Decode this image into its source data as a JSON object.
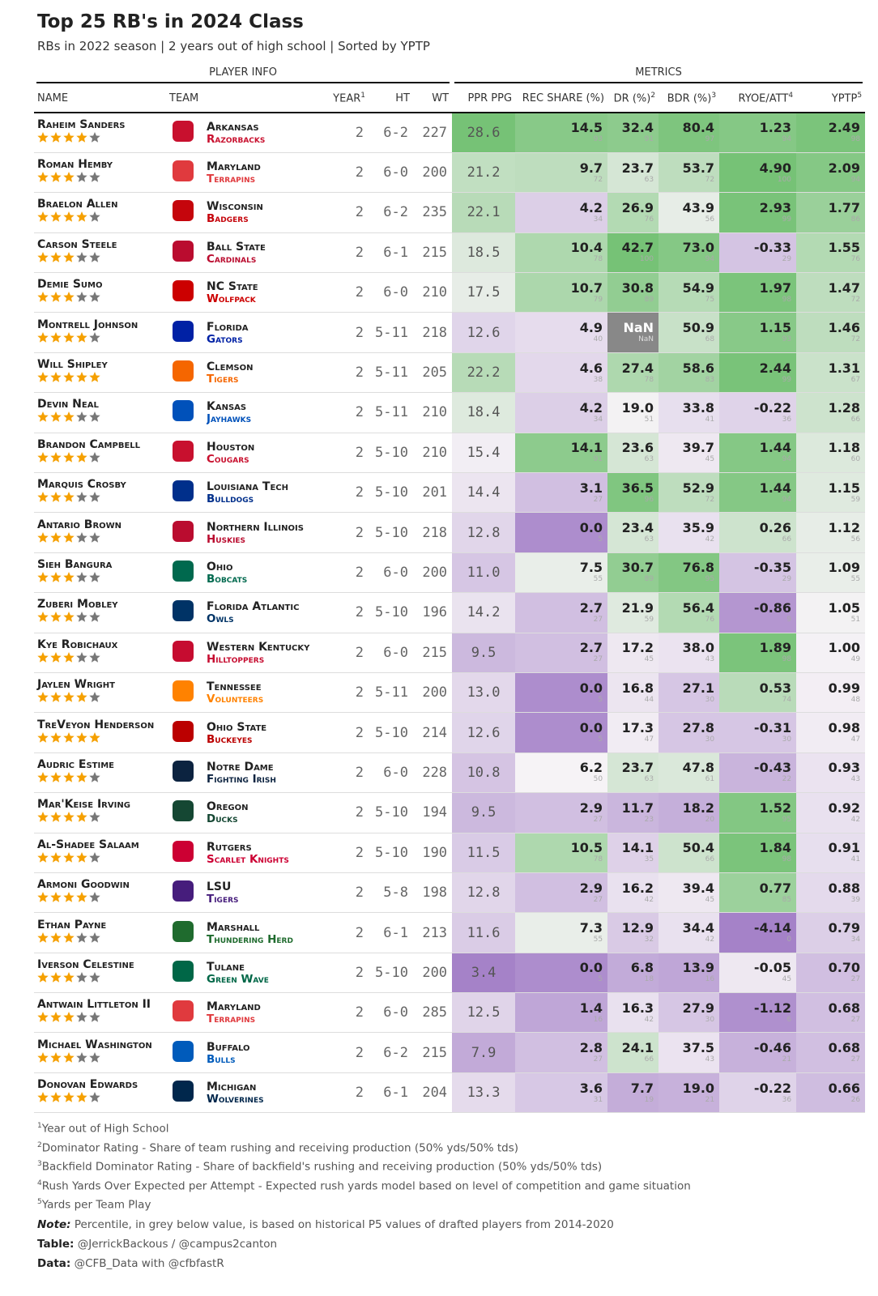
{
  "header": {
    "title": "Top 25 RB's in 2024 Class",
    "subtitle": "RBs in 2022 season | 2 years out of high school | Sorted by YPTP"
  },
  "spanners": [
    "PLAYER INFO",
    "METRICS"
  ],
  "columns": [
    {
      "label": "NAME"
    },
    {
      "label": "TEAM"
    },
    {
      "label": "YEAR",
      "note": "1"
    },
    {
      "label": "HT"
    },
    {
      "label": "WT"
    },
    {
      "label": "PPR PPG"
    },
    {
      "label": "REC SHARE (%)"
    },
    {
      "label": "DR (%)",
      "note": "2"
    },
    {
      "label": "BDR (%)",
      "note": "3"
    },
    {
      "label": "RYOE/ATT",
      "note": "4"
    },
    {
      "label": "YPTP",
      "note": "5"
    }
  ],
  "rows": [
    {
      "name": "Raheim Sanders",
      "stars": 4,
      "team": "Arkansas",
      "nickname": "Razorbacks",
      "color": "#c8102e",
      "year": 2,
      "ht": "6-2",
      "wt": 227,
      "ppr": "28.6",
      "rec": [
        "14.5",
        93
      ],
      "dr": [
        "32.4",
        91
      ],
      "bdr": [
        "80.4",
        97
      ],
      "ryoe": [
        "1.23",
        94
      ],
      "yptp": [
        "2.49",
        98
      ]
    },
    {
      "name": "Roman Hemby",
      "stars": 3,
      "team": "Maryland",
      "nickname": "Terrapins",
      "color": "#e03a3e",
      "year": 2,
      "ht": "6-0",
      "wt": 200,
      "ppr": "21.2",
      "rec": [
        "9.7",
        72
      ],
      "dr": [
        "23.7",
        63
      ],
      "bdr": [
        "53.7",
        72
      ],
      "ryoe": [
        "4.90",
        100
      ],
      "yptp": [
        "2.09",
        94
      ]
    },
    {
      "name": "Braelon Allen",
      "stars": 4,
      "team": "Wisconsin",
      "nickname": "Badgers",
      "color": "#c5050c",
      "year": 2,
      "ht": "6-2",
      "wt": 235,
      "ppr": "22.1",
      "rec": [
        "4.2",
        34
      ],
      "dr": [
        "26.9",
        76
      ],
      "bdr": [
        "43.9",
        56
      ],
      "ryoe": [
        "2.93",
        99
      ],
      "yptp": [
        "1.77",
        86
      ]
    },
    {
      "name": "Carson Steele",
      "stars": 3,
      "team": "Ball State",
      "nickname": "Cardinals",
      "color": "#ba0c2f",
      "year": 2,
      "ht": "6-1",
      "wt": 215,
      "ppr": "18.5",
      "rec": [
        "10.4",
        78
      ],
      "dr": [
        "42.7",
        100
      ],
      "bdr": [
        "73.0",
        94
      ],
      "ryoe": [
        "-0.33",
        29
      ],
      "yptp": [
        "1.55",
        76
      ]
    },
    {
      "name": "Demie Sumo",
      "stars": 3,
      "team": "NC State",
      "nickname": "Wolfpack",
      "color": "#cc0000",
      "year": 2,
      "ht": "6-0",
      "wt": 210,
      "ppr": "17.5",
      "rec": [
        "10.7",
        79
      ],
      "dr": [
        "30.8",
        89
      ],
      "bdr": [
        "54.9",
        75
      ],
      "ryoe": [
        "1.97",
        98
      ],
      "yptp": [
        "1.47",
        72
      ]
    },
    {
      "name": "Montrell Johnson",
      "stars": 4,
      "team": "Florida",
      "nickname": "Gators",
      "color": "#0021a5",
      "year": 2,
      "ht": "5-11",
      "wt": 218,
      "ppr": "12.6",
      "rec": [
        "4.9",
        40
      ],
      "dr": [
        "NaN",
        "NaN"
      ],
      "bdr": [
        "50.9",
        68
      ],
      "ryoe": [
        "1.15",
        93
      ],
      "yptp": [
        "1.46",
        72
      ]
    },
    {
      "name": "Will Shipley",
      "stars": 5,
      "team": "Clemson",
      "nickname": "Tigers",
      "color": "#f56600",
      "year": 2,
      "ht": "5-11",
      "wt": 205,
      "ppr": "22.2",
      "rec": [
        "4.6",
        38
      ],
      "dr": [
        "27.4",
        78
      ],
      "bdr": [
        "58.6",
        83
      ],
      "ryoe": [
        "2.44",
        99
      ],
      "yptp": [
        "1.31",
        67
      ]
    },
    {
      "name": "Devin Neal",
      "stars": 3,
      "team": "Kansas",
      "nickname": "Jayhawks",
      "color": "#0051ba",
      "year": 2,
      "ht": "5-11",
      "wt": 210,
      "ppr": "18.4",
      "rec": [
        "4.2",
        34
      ],
      "dr": [
        "19.0",
        51
      ],
      "bdr": [
        "33.8",
        41
      ],
      "ryoe": [
        "-0.22",
        36
      ],
      "yptp": [
        "1.28",
        66
      ]
    },
    {
      "name": "Brandon Campbell",
      "stars": 4,
      "team": "Houston",
      "nickname": "Cougars",
      "color": "#c8102e",
      "year": 2,
      "ht": "5-10",
      "wt": 210,
      "ppr": "15.4",
      "rec": [
        "14.1",
        91
      ],
      "dr": [
        "23.6",
        63
      ],
      "bdr": [
        "39.7",
        45
      ],
      "ryoe": [
        "1.44",
        94
      ],
      "yptp": [
        "1.18",
        60
      ]
    },
    {
      "name": "Marquis Crosby",
      "stars": 3,
      "team": "Louisiana Tech",
      "nickname": "Bulldogs",
      "color": "#002f8b",
      "year": 2,
      "ht": "5-10",
      "wt": 201,
      "ppr": "14.4",
      "rec": [
        "3.1",
        27
      ],
      "dr": [
        "36.5",
        96
      ],
      "bdr": [
        "52.9",
        72
      ],
      "ryoe": [
        "1.44",
        94
      ],
      "yptp": [
        "1.15",
        59
      ]
    },
    {
      "name": "Antario Brown",
      "stars": 3,
      "team": "Northern Illinois",
      "nickname": "Huskies",
      "color": "#ba0c2f",
      "year": 2,
      "ht": "5-10",
      "wt": 218,
      "ppr": "12.8",
      "rec": [
        "0.0",
        5
      ],
      "dr": [
        "23.4",
        63
      ],
      "bdr": [
        "35.9",
        42
      ],
      "ryoe": [
        "0.26",
        66
      ],
      "yptp": [
        "1.12",
        56
      ]
    },
    {
      "name": "Sieh Bangura",
      "stars": 3,
      "team": "Ohio",
      "nickname": "Bobcats",
      "color": "#00694e",
      "year": 2,
      "ht": "6-0",
      "wt": 200,
      "ppr": "11.0",
      "rec": [
        "7.5",
        55
      ],
      "dr": [
        "30.7",
        89
      ],
      "bdr": [
        "76.8",
        95
      ],
      "ryoe": [
        "-0.35",
        29
      ],
      "yptp": [
        "1.09",
        55
      ]
    },
    {
      "name": "Zuberi Mobley",
      "stars": 3,
      "team": "Florida Atlantic",
      "nickname": "Owls",
      "color": "#003366",
      "year": 2,
      "ht": "5-10",
      "wt": 196,
      "ppr": "14.2",
      "rec": [
        "2.7",
        27
      ],
      "dr": [
        "21.9",
        59
      ],
      "bdr": [
        "56.4",
        76
      ],
      "ryoe": [
        "-0.86",
        9
      ],
      "yptp": [
        "1.05",
        51
      ]
    },
    {
      "name": "Kye Robichaux",
      "stars": 3,
      "team": "Western Kentucky",
      "nickname": "Hilltoppers",
      "color": "#c60c30",
      "year": 2,
      "ht": "6-0",
      "wt": 215,
      "ppr": "9.5",
      "rec": [
        "2.7",
        27
      ],
      "dr": [
        "17.2",
        45
      ],
      "bdr": [
        "38.0",
        43
      ],
      "ryoe": [
        "1.89",
        98
      ],
      "yptp": [
        "1.00",
        49
      ]
    },
    {
      "name": "Jaylen Wright",
      "stars": 4,
      "team": "Tennessee",
      "nickname": "Volunteers",
      "color": "#ff8200",
      "year": 2,
      "ht": "5-11",
      "wt": 200,
      "ppr": "13.0",
      "rec": [
        "0.0",
        5
      ],
      "dr": [
        "16.8",
        44
      ],
      "bdr": [
        "27.1",
        30
      ],
      "ryoe": [
        "0.53",
        74
      ],
      "yptp": [
        "0.99",
        48
      ]
    },
    {
      "name": "TreVeyon Henderson",
      "stars": 5,
      "team": "Ohio State",
      "nickname": "Buckeyes",
      "color": "#bb0000",
      "year": 2,
      "ht": "5-10",
      "wt": 214,
      "ppr": "12.6",
      "rec": [
        "0.0",
        5
      ],
      "dr": [
        "17.3",
        47
      ],
      "bdr": [
        "27.8",
        30
      ],
      "ryoe": [
        "-0.31",
        30
      ],
      "yptp": [
        "0.98",
        47
      ]
    },
    {
      "name": "Audric Estime",
      "stars": 4,
      "team": "Notre Dame",
      "nickname": "Fighting Irish",
      "color": "#0c2340",
      "year": 2,
      "ht": "6-0",
      "wt": 228,
      "ppr": "10.8",
      "rec": [
        "6.2",
        50
      ],
      "dr": [
        "23.7",
        63
      ],
      "bdr": [
        "47.8",
        61
      ],
      "ryoe": [
        "-0.43",
        22
      ],
      "yptp": [
        "0.93",
        43
      ]
    },
    {
      "name": "Mar'Keise Irving",
      "stars": 4,
      "team": "Oregon",
      "nickname": "Ducks",
      "color": "#154733",
      "year": 2,
      "ht": "5-10",
      "wt": 194,
      "ppr": "9.5",
      "rec": [
        "2.9",
        27
      ],
      "dr": [
        "11.7",
        23
      ],
      "bdr": [
        "18.2",
        20
      ],
      "ryoe": [
        "1.52",
        95
      ],
      "yptp": [
        "0.92",
        42
      ]
    },
    {
      "name": "Al-Shadee Salaam",
      "stars": 4,
      "team": "Rutgers",
      "nickname": "Scarlet Knights",
      "color": "#cc0033",
      "year": 2,
      "ht": "5-10",
      "wt": 190,
      "ppr": "11.5",
      "rec": [
        "10.5",
        78
      ],
      "dr": [
        "14.1",
        35
      ],
      "bdr": [
        "50.4",
        66
      ],
      "ryoe": [
        "1.84",
        98
      ],
      "yptp": [
        "0.91",
        41
      ]
    },
    {
      "name": "Armoni Goodwin",
      "stars": 4,
      "team": "LSU",
      "nickname": "Tigers",
      "color": "#461d7c",
      "year": 2,
      "ht": "5-8",
      "wt": 198,
      "ppr": "12.8",
      "rec": [
        "2.9",
        27
      ],
      "dr": [
        "16.2",
        42
      ],
      "bdr": [
        "39.4",
        45
      ],
      "ryoe": [
        "0.77",
        85
      ],
      "yptp": [
        "0.88",
        39
      ]
    },
    {
      "name": "Ethan Payne",
      "stars": 3,
      "team": "Marshall",
      "nickname": "Thundering Herd",
      "color": "#1f6b2e",
      "year": 2,
      "ht": "6-1",
      "wt": 213,
      "ppr": "11.6",
      "rec": [
        "7.3",
        55
      ],
      "dr": [
        "12.9",
        32
      ],
      "bdr": [
        "34.4",
        42
      ],
      "ryoe": [
        "-4.14",
        0
      ],
      "yptp": [
        "0.79",
        34
      ]
    },
    {
      "name": "Iverson Celestine",
      "stars": 3,
      "team": "Tulane",
      "nickname": "Green Wave",
      "color": "#006747",
      "year": 2,
      "ht": "5-10",
      "wt": 200,
      "ppr": "3.4",
      "rec": [
        "0.0",
        5
      ],
      "dr": [
        "6.8",
        18
      ],
      "bdr": [
        "13.9",
        16
      ],
      "ryoe": [
        "-0.05",
        45
      ],
      "yptp": [
        "0.70",
        27
      ]
    },
    {
      "name": "Antwain Littleton II",
      "stars": 3,
      "team": "Maryland",
      "nickname": "Terrapins",
      "color": "#e03a3e",
      "year": 2,
      "ht": "6-0",
      "wt": 285,
      "ppr": "12.5",
      "rec": [
        "1.4",
        16
      ],
      "dr": [
        "16.3",
        42
      ],
      "bdr": [
        "27.9",
        30
      ],
      "ryoe": [
        "-1.12",
        6
      ],
      "yptp": [
        "0.68",
        27
      ]
    },
    {
      "name": "Michael Washington",
      "stars": 3,
      "team": "Buffalo",
      "nickname": "Bulls",
      "color": "#005bbb",
      "year": 2,
      "ht": "6-2",
      "wt": 215,
      "ppr": "7.9",
      "rec": [
        "2.8",
        27
      ],
      "dr": [
        "24.1",
        66
      ],
      "bdr": [
        "37.5",
        43
      ],
      "ryoe": [
        "-0.46",
        21
      ],
      "yptp": [
        "0.68",
        27
      ]
    },
    {
      "name": "Donovan Edwards",
      "stars": 4,
      "team": "Michigan",
      "nickname": "Wolverines",
      "color": "#00274c",
      "year": 2,
      "ht": "6-1",
      "wt": 204,
      "ppr": "13.3",
      "rec": [
        "3.6",
        31
      ],
      "dr": [
        "7.7",
        19
      ],
      "bdr": [
        "19.0",
        21
      ],
      "ryoe": [
        "-0.22",
        36
      ],
      "yptp": [
        "0.66",
        26
      ]
    }
  ],
  "footnotes": [
    {
      "mark": "1",
      "text": "Year out of High School"
    },
    {
      "mark": "2",
      "text": "Dominator Rating - Share of team rushing and receiving production (50% yds/50% tds)"
    },
    {
      "mark": "3",
      "text": "Backfield Dominator Rating - Share of backfield's rushing and receiving production (50% yds/50% tds)"
    },
    {
      "mark": "4",
      "text": "Rush Yards Over Expected per Attempt - Expected rush yards model based on level of competition and game situation"
    },
    {
      "mark": "5",
      "text": "Yards per Team Play"
    }
  ],
  "notes": [
    {
      "label": "Note:",
      "text": "Percentile, in grey below value, is based on historical P5 values of drafted players from 2014-2020"
    },
    {
      "label": "Table:",
      "text": "@JerrickBackous / @campus2canton"
    },
    {
      "label": "Data:",
      "text": "@CFB_Data with @cfbfastR"
    }
  ]
}
